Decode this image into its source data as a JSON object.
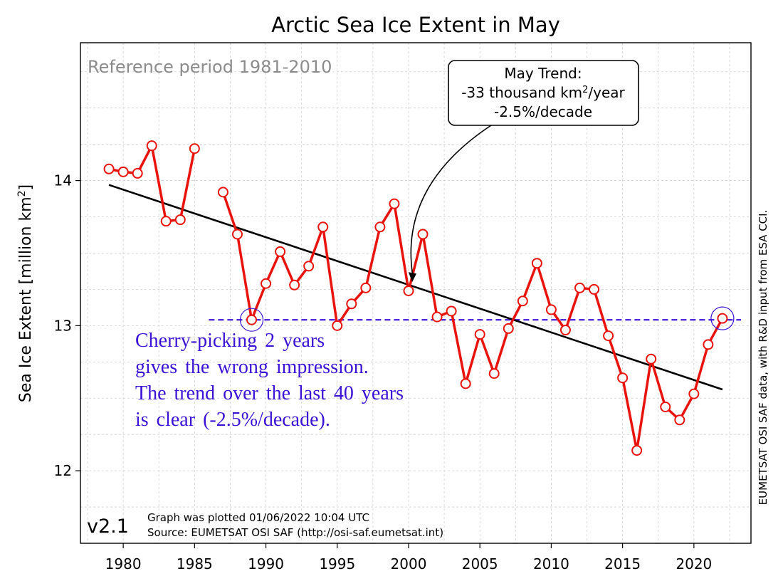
{
  "chart_data": {
    "type": "line",
    "title": "Arctic Sea Ice Extent in May",
    "ylabel": "Sea Ice Extent [million km²]",
    "ylabel_parts": {
      "main": "Sea Ice Extent [million km",
      "sup": "2",
      "end": "]"
    },
    "xlim": [
      1977,
      2024
    ],
    "ylim": [
      11.5,
      14.95
    ],
    "x_ticks": [
      1980,
      1985,
      1990,
      1995,
      2000,
      2005,
      2010,
      2015,
      2020
    ],
    "y_ticks": [
      12,
      13,
      14
    ],
    "grid": true,
    "series": [
      {
        "color": "#e8130d",
        "x": [
          1979,
          1980,
          1981,
          1982,
          1983,
          1984,
          1985,
          null,
          1987,
          1988,
          1989,
          1990,
          1991,
          1992,
          1993,
          1994,
          1995,
          1996,
          1997,
          1998,
          1999,
          2000,
          2001,
          2002,
          2003,
          2004,
          2005,
          2006,
          2007,
          2008,
          2009,
          2010,
          2011,
          2012,
          2013,
          2014,
          2015,
          2016,
          2017,
          2018,
          2019,
          2020,
          2021,
          2022
        ],
        "y": [
          14.08,
          14.06,
          14.05,
          14.24,
          13.72,
          13.73,
          14.22,
          null,
          13.92,
          13.63,
          13.04,
          13.29,
          13.51,
          13.28,
          13.41,
          13.68,
          13.0,
          13.15,
          13.26,
          13.68,
          13.84,
          13.24,
          13.63,
          13.06,
          13.1,
          12.6,
          12.94,
          12.67,
          12.98,
          13.17,
          13.43,
          13.11,
          12.97,
          13.26,
          13.25,
          12.93,
          12.64,
          12.14,
          12.77,
          12.44,
          12.35,
          12.53,
          12.87,
          13.05
        ]
      }
    ],
    "trend_line": {
      "color": "#000000",
      "x": [
        1979,
        2022
      ],
      "y": [
        13.97,
        12.56
      ]
    },
    "reference_line": {
      "color": "#3b13d6",
      "x": [
        1986,
        2023.3
      ],
      "y": 13.04
    },
    "highlighted_points": [
      {
        "x": 1989,
        "y": 13.04
      },
      {
        "x": 2022,
        "y": 13.05
      }
    ],
    "annotations": {
      "reference_period": "Reference period 1981-2010",
      "trend_box": {
        "line1": "May Trend:",
        "line2_pre": "-33 thousand km",
        "line2_sup": "2",
        "line2_post": "/year",
        "line3": "-2.5%/decade",
        "arrow_target": {
          "x": 2000.3,
          "y": 13.3
        }
      },
      "cherry_text": [
        "Cherry-picking 2 years",
        "gives the wrong impression.",
        "The trend over the last 40 years",
        "is clear (-2.5%/decade)."
      ],
      "cherry_color": "#3b13d6",
      "version": "v2.1",
      "plotted": "Graph was plotted 01/06/2022 10:04 UTC",
      "source": "Source: EUMETSAT OSI SAF (http://osi-saf.eumetsat.int)",
      "side_credit": "EUMETSAT OSI SAF data, with R&D input from ESA CCI."
    }
  }
}
